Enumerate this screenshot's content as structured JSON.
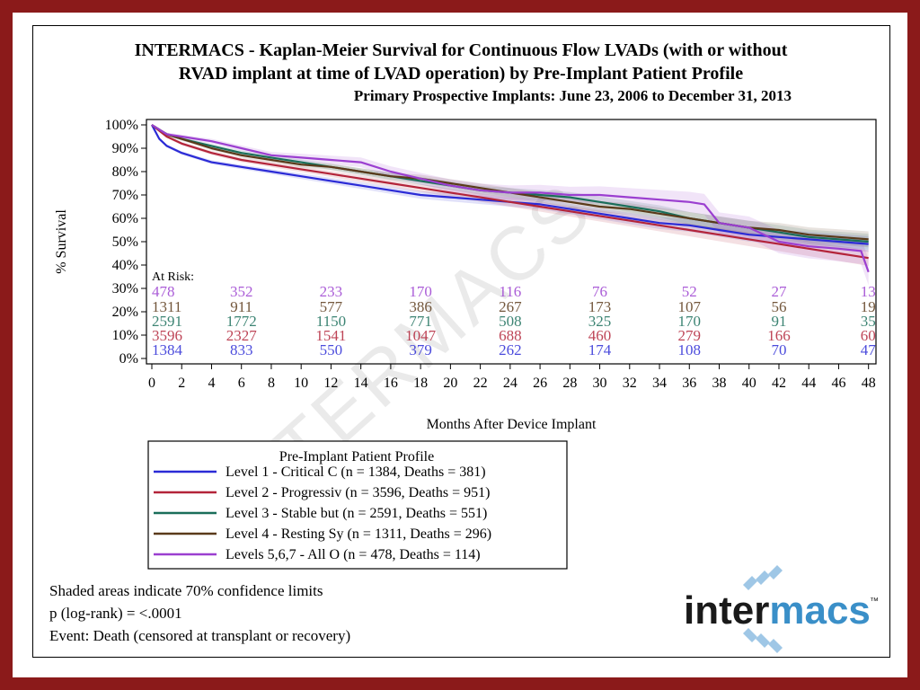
{
  "colors": {
    "frame": "#8b1a1a",
    "level1": "#2b2bd6",
    "level2": "#b3243a",
    "level3": "#1a6e5a",
    "level4": "#5a3a1a",
    "level567": "#9b3fd0"
  },
  "chart_data": {
    "type": "line",
    "title_line1": "INTERMACS - Kaplan-Meier Survival for Continuous Flow LVADs (with or without",
    "title_line2": "RVAD implant at time of LVAD operation) by Pre-Implant Patient Profile",
    "subtitle": "Primary Prospective Implants: June 23, 2006 to December 31, 2013",
    "xlabel": "Months After Device Implant",
    "ylabel": "% Survival",
    "xlim": [
      0,
      48.5
    ],
    "ylim": [
      0,
      100
    ],
    "x_ticks": [
      "0",
      "2",
      "4",
      "6",
      "8",
      "10",
      "12",
      "14",
      "16",
      "18",
      "20",
      "22",
      "24",
      "26",
      "28",
      "30",
      "32",
      "34",
      "36",
      "38",
      "40",
      "42",
      "44",
      "46",
      "48"
    ],
    "y_ticks": [
      "0%",
      "10%",
      "20%",
      "30%",
      "40%",
      "50%",
      "60%",
      "70%",
      "80%",
      "90%",
      "100%"
    ],
    "grid": false,
    "at_risk_label": "At Risk:",
    "at_risk_months": [
      0,
      6,
      12,
      18,
      24,
      30,
      36,
      42,
      48
    ],
    "series": [
      {
        "name": "Level 1 - Critical C (n = 1384, Deaths = 381)",
        "color_key": "level1",
        "x": [
          0,
          0.5,
          1,
          2,
          3,
          4,
          6,
          8,
          10,
          12,
          14,
          16,
          18,
          20,
          22,
          24,
          26,
          28,
          30,
          32,
          34,
          36,
          38,
          40,
          42,
          44,
          46,
          48
        ],
        "y": [
          100,
          94,
          91,
          88,
          86,
          84,
          82,
          80,
          78,
          76,
          74,
          72,
          70,
          69,
          68,
          67,
          66,
          64,
          62,
          60,
          58,
          57,
          55,
          53,
          52,
          51,
          50,
          49
        ],
        "at_risk": [
          "1384",
          "833",
          "550",
          "379",
          "262",
          "174",
          "108",
          "70",
          "47"
        ]
      },
      {
        "name": "Level 2 - Progressiv (n = 3596, Deaths = 951)",
        "color_key": "level2",
        "x": [
          0,
          1,
          2,
          4,
          6,
          8,
          10,
          12,
          14,
          16,
          18,
          20,
          22,
          24,
          26,
          28,
          30,
          32,
          34,
          36,
          38,
          40,
          42,
          44,
          46,
          47,
          48
        ],
        "y": [
          100,
          95,
          92,
          88,
          85,
          83,
          81,
          79,
          77,
          75,
          73,
          71,
          69,
          67,
          65,
          63,
          61,
          59,
          57,
          55,
          53,
          51,
          49,
          47,
          45,
          44,
          43
        ],
        "at_risk": [
          "3596",
          "2327",
          "1541",
          "1047",
          "688",
          "460",
          "279",
          "166",
          "60"
        ]
      },
      {
        "name": "Level 3 - Stable but (n = 2591, Deaths = 551)",
        "color_key": "level3",
        "x": [
          0,
          1,
          2,
          4,
          6,
          8,
          10,
          12,
          14,
          16,
          18,
          20,
          22,
          24,
          26,
          28,
          30,
          32,
          34,
          36,
          38,
          40,
          42,
          44,
          46,
          48
        ],
        "y": [
          100,
          96,
          94,
          91,
          88,
          86,
          84,
          82,
          80,
          78,
          76,
          74,
          72,
          71,
          70,
          69,
          67,
          65,
          63,
          60,
          58,
          56,
          54,
          52,
          51,
          50
        ],
        "at_risk": [
          "2591",
          "1772",
          "1150",
          "771",
          "508",
          "325",
          "170",
          "91",
          "35"
        ]
      },
      {
        "name": "Level 4 - Resting Sy (n = 1311, Deaths = 296)",
        "color_key": "level4",
        "x": [
          0,
          1,
          2,
          4,
          6,
          8,
          10,
          12,
          14,
          16,
          18,
          20,
          22,
          24,
          26,
          28,
          30,
          32,
          34,
          36,
          38,
          40,
          42,
          44,
          46,
          48
        ],
        "y": [
          100,
          96,
          94,
          90,
          87,
          85,
          83,
          82,
          80,
          78,
          77,
          75,
          73,
          71,
          69,
          67,
          65,
          64,
          62,
          60,
          58,
          56,
          55,
          53,
          52,
          51
        ],
        "at_risk": [
          "1311",
          "911",
          "577",
          "386",
          "267",
          "173",
          "107",
          "56",
          "19"
        ]
      },
      {
        "name": "Levels 5,6,7 - All O (n = 478, Deaths = 114)",
        "color_key": "level567",
        "x": [
          0,
          1,
          2,
          4,
          6,
          8,
          10,
          12,
          14,
          16,
          18,
          20,
          22,
          24,
          26,
          28,
          30,
          32,
          34,
          36,
          37,
          38,
          40,
          42,
          44,
          46,
          47.5,
          48
        ],
        "y": [
          100,
          96,
          95,
          93,
          90,
          87,
          86,
          85,
          84,
          80,
          77,
          74,
          72,
          71,
          71,
          70,
          70,
          69,
          68,
          67,
          66,
          58,
          56,
          50,
          48,
          47,
          46,
          37
        ],
        "at_risk": [
          "478",
          "352",
          "233",
          "170",
          "116",
          "76",
          "52",
          "27",
          "13"
        ]
      }
    ],
    "legend": {
      "title": "Pre-Implant Patient Profile",
      "placement": "bottom-left"
    }
  },
  "notes": {
    "line1": "Shaded areas indicate 70% confidence limits",
    "line2": "p (log-rank) = <.0001",
    "line3": "Event: Death (censored at transplant or recovery)"
  },
  "watermark": "INTERMACS",
  "logo": {
    "part1": "inter",
    "part2": "macs",
    "tm": "™"
  }
}
